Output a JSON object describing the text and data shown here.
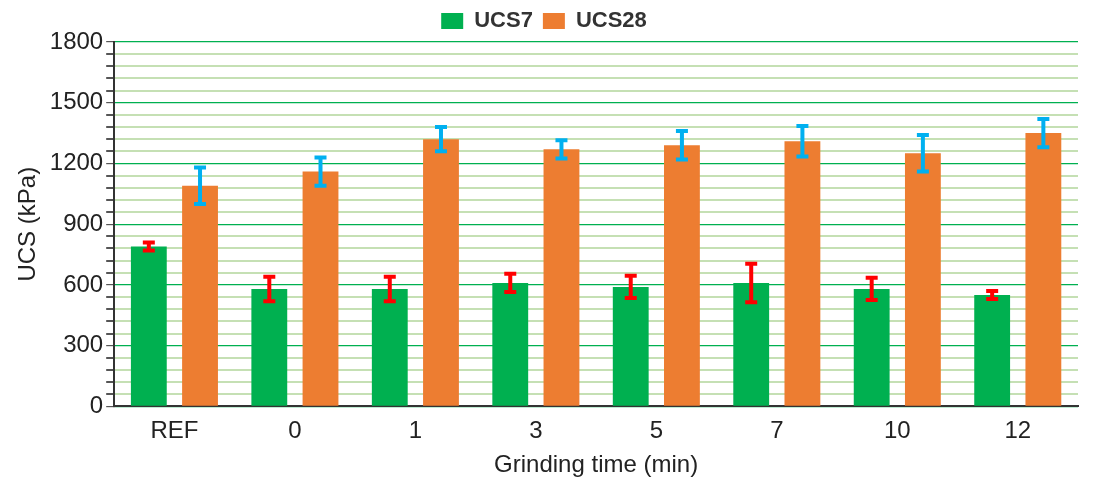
{
  "chart_data": {
    "type": "bar",
    "xlabel": "Grinding time (min)",
    "ylabel": "UCS (kPa)",
    "categories": [
      "REF",
      "0",
      "1",
      "3",
      "5",
      "7",
      "10",
      "12"
    ],
    "series": [
      {
        "name": "UCS7",
        "color": "#00b050",
        "values": [
          790,
          580,
          580,
          610,
          590,
          610,
          580,
          550
        ],
        "errors": [
          20,
          60,
          60,
          45,
          55,
          95,
          55,
          20
        ]
      },
      {
        "name": "UCS28",
        "color": "#ed7d31",
        "values": [
          1090,
          1160,
          1320,
          1270,
          1290,
          1310,
          1250,
          1350
        ],
        "errors": [
          90,
          70,
          60,
          45,
          70,
          75,
          90,
          70
        ]
      }
    ],
    "ylim": [
      0,
      1800
    ],
    "yticks": [
      0,
      {
        "value": 60,
        "label": null
      },
      {
        "value": 120,
        "label": null
      },
      {
        "value": 180,
        "label": null
      },
      {
        "value": 240,
        "label": null
      },
      300,
      {
        "value": 360,
        "label": null
      },
      {
        "value": 420,
        "label": null
      },
      {
        "value": 480,
        "label": null
      },
      {
        "value": 540,
        "label": null
      },
      600,
      {
        "value": 660,
        "label": null
      },
      {
        "value": 720,
        "label": null
      },
      {
        "value": 780,
        "label": null
      },
      {
        "value": 840,
        "label": null
      },
      900,
      {
        "value": 960,
        "label": null
      },
      {
        "value": 1020,
        "label": null
      },
      {
        "value": 1080,
        "label": null
      },
      {
        "value": 1140,
        "label": null
      },
      1200,
      {
        "value": 1260,
        "label": null
      },
      {
        "value": 1320,
        "label": null
      },
      {
        "value": 1380,
        "label": null
      },
      {
        "value": 1440,
        "label": null
      },
      1500,
      {
        "value": 1560,
        "label": null
      },
      {
        "value": 1620,
        "label": null
      },
      {
        "value": 1680,
        "label": null
      },
      {
        "value": 1740,
        "label": null
      },
      1800
    ],
    "grid": "y",
    "legend": "top"
  }
}
